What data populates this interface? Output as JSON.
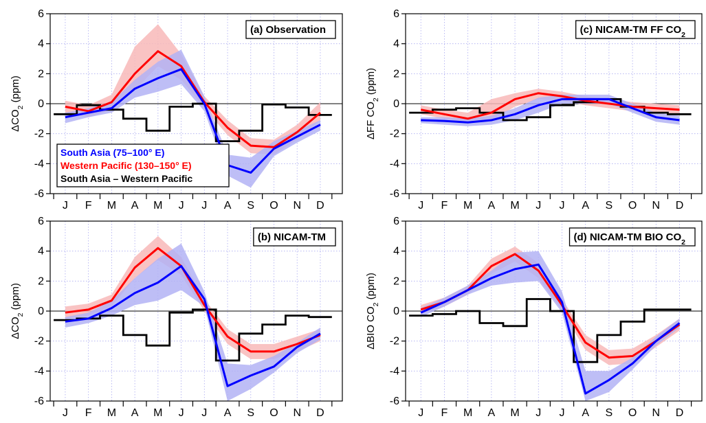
{
  "colors": {
    "south_asia": "#0000ff",
    "south_asia_band": "#b3b3f5",
    "western_pacific": "#ff0000",
    "western_pacific_band": "#f8b8b8",
    "difference": "#000000",
    "grid": "#a8a8f0"
  },
  "months": [
    "J",
    "F",
    "M",
    "A",
    "M",
    "J",
    "J",
    "A",
    "S",
    "O",
    "N",
    "D"
  ],
  "legend": [
    {
      "key": "south_asia",
      "label": "South Asia (75–100° E)"
    },
    {
      "key": "western_pacific",
      "label": "Western Pacific (130–150° E)"
    },
    {
      "key": "difference",
      "label": "South Asia – Western Pacific"
    }
  ],
  "chart_data": [
    {
      "type": "line",
      "title": "(a) Observation",
      "ylabel": "ΔCO₂ (ppm)",
      "ylim": [
        -6,
        6
      ],
      "yticks": [
        6,
        4,
        2,
        0,
        -2,
        -4,
        -6
      ],
      "x": [
        1,
        2,
        3,
        4,
        5,
        6,
        7,
        8,
        9,
        10,
        11,
        12
      ],
      "grid": true,
      "legend": "lower-left",
      "south_asia": {
        "values": [
          -0.9,
          -0.6,
          -0.3,
          1.0,
          1.7,
          2.3,
          0.0,
          -4.1,
          -4.6,
          -3.0,
          -2.2,
          -1.4
        ],
        "upper": [
          -0.6,
          -0.3,
          0.1,
          1.6,
          2.8,
          3.6,
          0.5,
          -3.4,
          -3.6,
          -2.5,
          -1.8,
          -1.1
        ],
        "lower": [
          -1.3,
          -0.9,
          -0.6,
          0.4,
          0.8,
          1.3,
          -0.5,
          -4.8,
          -5.6,
          -3.5,
          -2.6,
          -1.8
        ]
      },
      "western_pacific": {
        "values": [
          -0.2,
          -0.5,
          0.1,
          2.0,
          3.5,
          2.5,
          0.1,
          -1.6,
          -2.8,
          -2.9,
          -1.9,
          -0.6
        ],
        "upper": [
          0.2,
          -0.1,
          0.6,
          3.8,
          5.3,
          3.3,
          0.5,
          -1.1,
          -2.3,
          -2.4,
          -1.4,
          0.1
        ],
        "lower": [
          -0.6,
          -0.9,
          -0.4,
          0.9,
          2.5,
          1.6,
          -0.3,
          -2.1,
          -3.3,
          -3.4,
          -2.4,
          -1.1
        ]
      },
      "difference": {
        "values": [
          -0.7,
          -0.1,
          -0.4,
          -1.0,
          -1.8,
          -0.2,
          0.0,
          -2.5,
          -1.8,
          -0.05,
          -0.25,
          -0.75
        ]
      }
    },
    {
      "type": "line",
      "title": "(b) NICAM-TM",
      "ylabel": "ΔCO₂ (ppm)",
      "ylim": [
        -6,
        6
      ],
      "yticks": [
        6,
        4,
        2,
        0,
        -2,
        -4,
        -6
      ],
      "x": [
        1,
        2,
        3,
        4,
        5,
        6,
        7,
        8,
        9,
        10,
        11,
        12
      ],
      "grid": true,
      "south_asia": {
        "values": [
          -0.7,
          -0.5,
          0.2,
          1.2,
          1.9,
          3.0,
          0.8,
          -5.0,
          -4.3,
          -3.7,
          -2.4,
          -1.5
        ],
        "upper": [
          -0.4,
          -0.1,
          0.7,
          2.2,
          3.5,
          4.5,
          1.3,
          -3.5,
          -3.6,
          -3.0,
          -2.1,
          -1.1
        ],
        "lower": [
          -1.1,
          -0.8,
          -0.3,
          0.4,
          0.7,
          1.4,
          0.3,
          -6.0,
          -5.2,
          -4.1,
          -2.8,
          -1.9
        ]
      },
      "western_pacific": {
        "values": [
          -0.1,
          0.1,
          0.7,
          2.9,
          4.2,
          3.0,
          0.4,
          -1.7,
          -2.7,
          -2.7,
          -2.2,
          -1.6
        ],
        "upper": [
          0.3,
          0.5,
          1.1,
          3.6,
          5.0,
          3.6,
          0.8,
          -1.2,
          -2.2,
          -2.2,
          -1.7,
          -1.2
        ],
        "lower": [
          -0.5,
          -0.3,
          0.3,
          2.2,
          3.4,
          2.4,
          0.0,
          -2.2,
          -3.2,
          -3.2,
          -2.7,
          -2.0
        ]
      },
      "difference": {
        "values": [
          -0.6,
          -0.5,
          -0.3,
          -1.6,
          -2.3,
          -0.1,
          0.1,
          -3.3,
          -1.5,
          -0.9,
          -0.3,
          -0.4
        ]
      }
    },
    {
      "type": "line",
      "title": "(c) NICAM-TM FF CO₂",
      "ylabel": "ΔFF CO₂ (ppm)",
      "ylim": [
        -6,
        6
      ],
      "yticks": [
        6,
        4,
        2,
        0,
        -2,
        -4,
        -6
      ],
      "x": [
        1,
        2,
        3,
        4,
        5,
        6,
        7,
        8,
        9,
        10,
        11,
        12
      ],
      "grid": true,
      "south_asia": {
        "values": [
          -1.1,
          -1.15,
          -1.25,
          -1.1,
          -0.7,
          -0.1,
          0.3,
          0.3,
          0.3,
          -0.3,
          -0.9,
          -1.1
        ],
        "upper": [
          -0.9,
          -0.9,
          -1.0,
          -0.8,
          -0.3,
          0.4,
          0.6,
          0.6,
          0.6,
          0.0,
          -0.6,
          -0.8
        ],
        "lower": [
          -1.3,
          -1.4,
          -1.5,
          -1.4,
          -1.1,
          -0.6,
          0.0,
          0.0,
          0.0,
          -0.6,
          -1.2,
          -1.4
        ]
      },
      "western_pacific": {
        "values": [
          -0.4,
          -0.7,
          -1.0,
          -0.6,
          0.3,
          0.7,
          0.5,
          0.2,
          0.0,
          -0.2,
          -0.3,
          -0.4
        ],
        "upper": [
          -0.1,
          -0.4,
          -0.6,
          0.3,
          0.7,
          1.0,
          0.8,
          0.5,
          0.3,
          0.1,
          0.0,
          -0.1
        ],
        "lower": [
          -0.7,
          -1.0,
          -1.3,
          -1.1,
          -0.2,
          0.3,
          0.2,
          -0.1,
          -0.3,
          -0.5,
          -0.6,
          -0.7
        ]
      },
      "difference": {
        "values": [
          -0.6,
          -0.4,
          -0.3,
          -0.6,
          -1.1,
          -0.9,
          -0.1,
          0.1,
          0.3,
          -0.2,
          -0.6,
          -0.7
        ]
      }
    },
    {
      "type": "line",
      "title": "(d) NICAM-TM BIO CO₂",
      "ylabel": "ΔBIO CO₂ (ppm)",
      "ylim": [
        -6,
        6
      ],
      "yticks": [
        6,
        4,
        2,
        0,
        -2,
        -4,
        -6
      ],
      "x": [
        1,
        2,
        3,
        4,
        5,
        6,
        7,
        8,
        9,
        10,
        11,
        12
      ],
      "grid": true,
      "south_asia": {
        "values": [
          -0.1,
          0.6,
          1.4,
          2.2,
          2.8,
          3.1,
          0.6,
          -5.5,
          -4.6,
          -3.5,
          -2.0,
          -0.8
        ],
        "upper": [
          0.2,
          0.9,
          1.7,
          2.7,
          3.9,
          4.0,
          1.3,
          -4.0,
          -4.0,
          -3.1,
          -1.7,
          -0.5
        ],
        "lower": [
          -0.4,
          0.3,
          1.1,
          1.7,
          1.9,
          2.0,
          -0.1,
          -6.0,
          -5.4,
          -3.9,
          -2.3,
          -1.1
        ]
      },
      "western_pacific": {
        "values": [
          0.1,
          0.6,
          1.4,
          3.0,
          3.8,
          2.7,
          0.4,
          -2.1,
          -3.1,
          -3.0,
          -2.0,
          -0.9
        ],
        "upper": [
          0.4,
          0.9,
          1.7,
          3.5,
          4.3,
          3.2,
          0.8,
          -1.6,
          -2.6,
          -2.5,
          -1.6,
          -0.5
        ],
        "lower": [
          -0.2,
          0.3,
          1.1,
          2.5,
          3.3,
          2.2,
          0.0,
          -2.6,
          -3.6,
          -3.5,
          -2.4,
          -1.3
        ]
      },
      "difference": {
        "values": [
          -0.3,
          -0.2,
          0.0,
          -0.8,
          -1.0,
          0.8,
          0.0,
          -3.4,
          -1.6,
          -0.7,
          0.1,
          0.1
        ]
      }
    }
  ]
}
